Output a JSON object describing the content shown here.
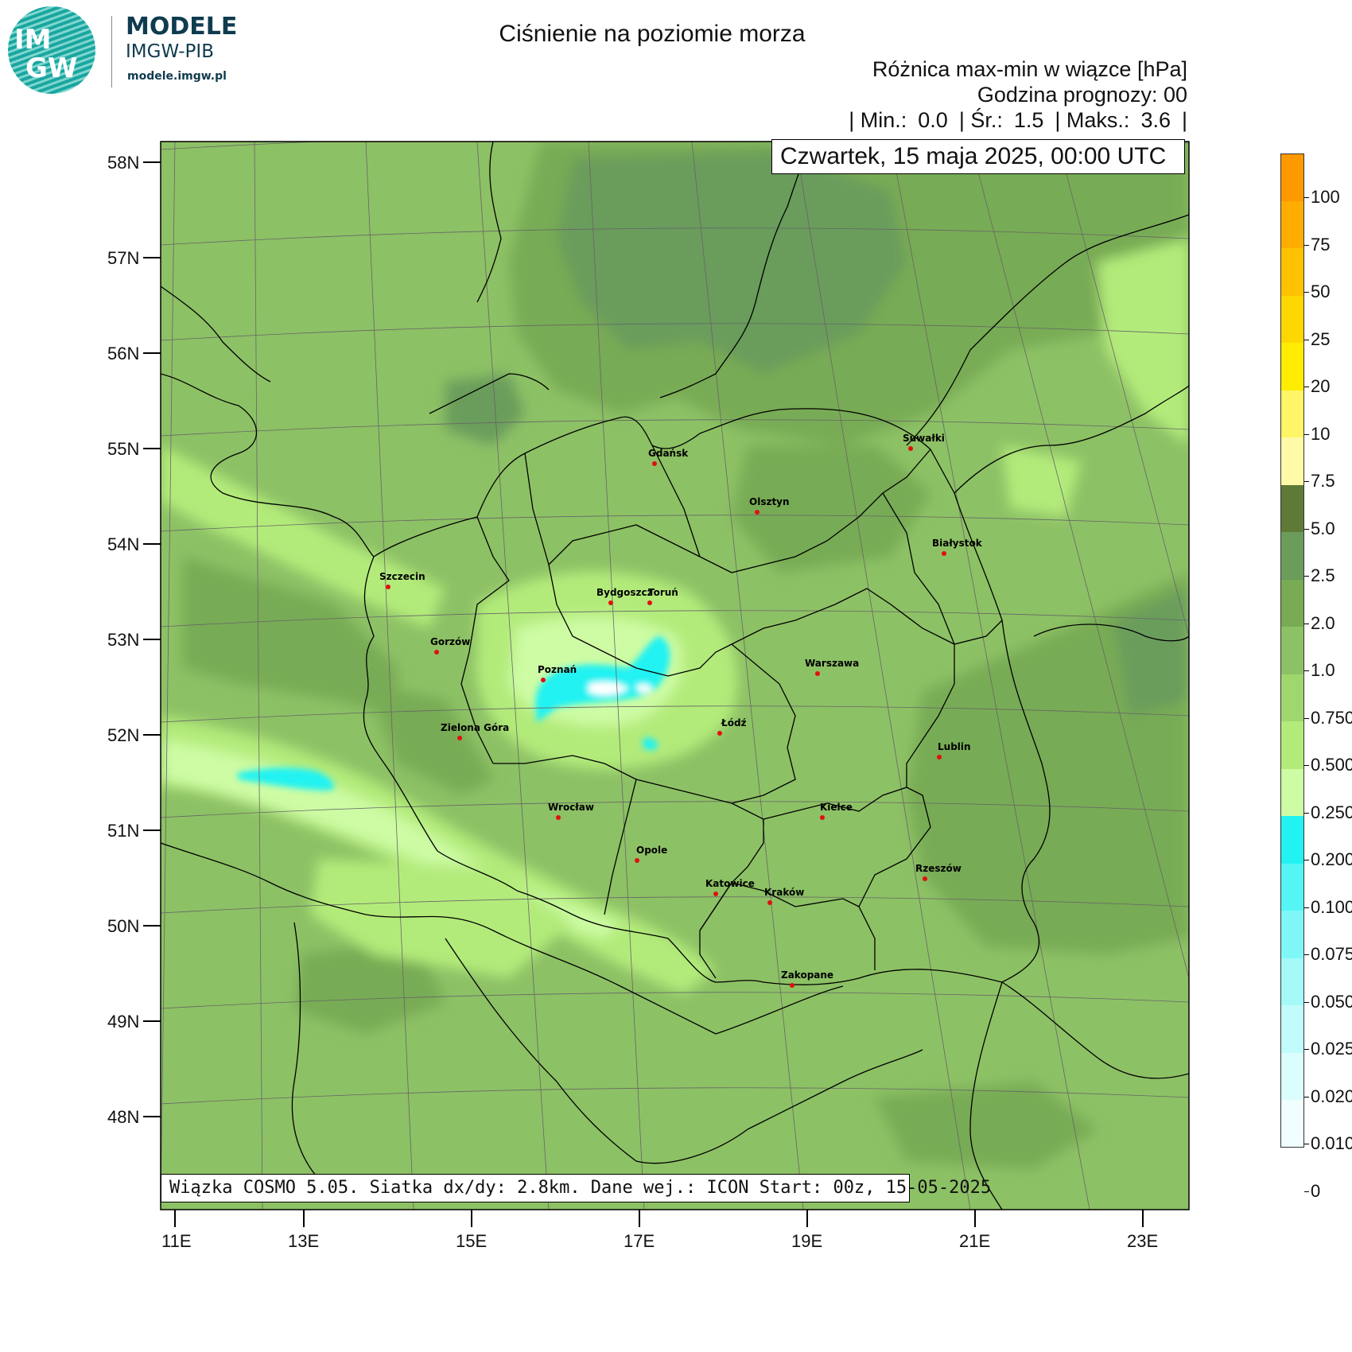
{
  "logo": {
    "circle_text_1": "IM",
    "circle_text_2": "GW",
    "title": "MODELE",
    "subtitle": "IMGW-PIB",
    "url": "modele.imgw.pl"
  },
  "header": {
    "title": "Ciśnienie na poziomie morza",
    "line1": "Różnica max-min w wiązce [hPa]",
    "line2": "Godzina prognozy: 00",
    "stats": {
      "min_label": "| Min.:",
      "min_value": "0.0",
      "mean_label": "| Śr.:",
      "mean_value": "1.5",
      "max_label": "| Maks.:",
      "max_value": "3.6",
      "end": "|"
    },
    "date": "Czwartek, 15 maja 2025, 00:00 UTC"
  },
  "footer": {
    "info": "Wiązka COSMO 5.05. Siatka dx/dy: 2.8km. Dane wej.: ICON Start: 00z, 15-05-2025"
  },
  "axes": {
    "lat_labels": [
      "58N",
      "57N",
      "56N",
      "55N",
      "54N",
      "53N",
      "52N",
      "51N",
      "50N",
      "49N",
      "48N"
    ],
    "lon_labels": [
      "11E",
      "13E",
      "15E",
      "17E",
      "19E",
      "21E",
      "23E"
    ]
  },
  "colorbar": {
    "levels": [
      {
        "label": "100",
        "color": "#ff9900"
      },
      {
        "label": "75",
        "color": "#ffad00"
      },
      {
        "label": "50",
        "color": "#ffc200"
      },
      {
        "label": "25",
        "color": "#ffd700"
      },
      {
        "label": "20",
        "color": "#ffec00"
      },
      {
        "label": "10",
        "color": "#fff566"
      },
      {
        "label": "7.5",
        "color": "#fffaa8"
      },
      {
        "label": "5.0",
        "color": "#5f7a37"
      },
      {
        "label": "2.5",
        "color": "#6b9c5c"
      },
      {
        "label": "2.0",
        "color": "#78ab54"
      },
      {
        "label": "1.0",
        "color": "#8dc165"
      },
      {
        "label": "0.750",
        "color": "#9fd66d"
      },
      {
        "label": "0.500",
        "color": "#b3eb7a"
      },
      {
        "label": "0.250",
        "color": "#cdfca4"
      },
      {
        "label": "0.200",
        "color": "#22f2f2"
      },
      {
        "label": "0.100",
        "color": "#55f5f5"
      },
      {
        "label": "0.075",
        "color": "#80f7f7"
      },
      {
        "label": "0.050",
        "color": "#a5f9f9"
      },
      {
        "label": "0.025",
        "color": "#c2fbfb"
      },
      {
        "label": "0.020",
        "color": "#dcfdfd"
      },
      {
        "label": "0.010",
        "color": "#f0fefe"
      },
      {
        "label": "0",
        "color": "#ffffff"
      }
    ]
  },
  "cities": [
    {
      "name": "Gdańsk"
    },
    {
      "name": "Suwałki"
    },
    {
      "name": "Olsztyn"
    },
    {
      "name": "Białystok"
    },
    {
      "name": "Szczecin"
    },
    {
      "name": "Bydgoszcz"
    },
    {
      "name": "Toruń"
    },
    {
      "name": "Gorzów"
    },
    {
      "name": "Poznań"
    },
    {
      "name": "Warszawa"
    },
    {
      "name": "Zielona Góra"
    },
    {
      "name": "Łódź"
    },
    {
      "name": "Lublin"
    },
    {
      "name": "Wrocław"
    },
    {
      "name": "Kielce"
    },
    {
      "name": "Opole"
    },
    {
      "name": "Rzeszów"
    },
    {
      "name": "Katowice"
    },
    {
      "name": "Kraków"
    },
    {
      "name": "Zakopane"
    }
  ],
  "colors": {
    "base_green": "#8dc165",
    "dark_green": "#78ab54",
    "darker_green": "#6b9c5c",
    "light_green": "#b3eb7a",
    "pale_green": "#cdfca4",
    "cyan": "#22f2f2",
    "city_marker": "#e01010"
  }
}
